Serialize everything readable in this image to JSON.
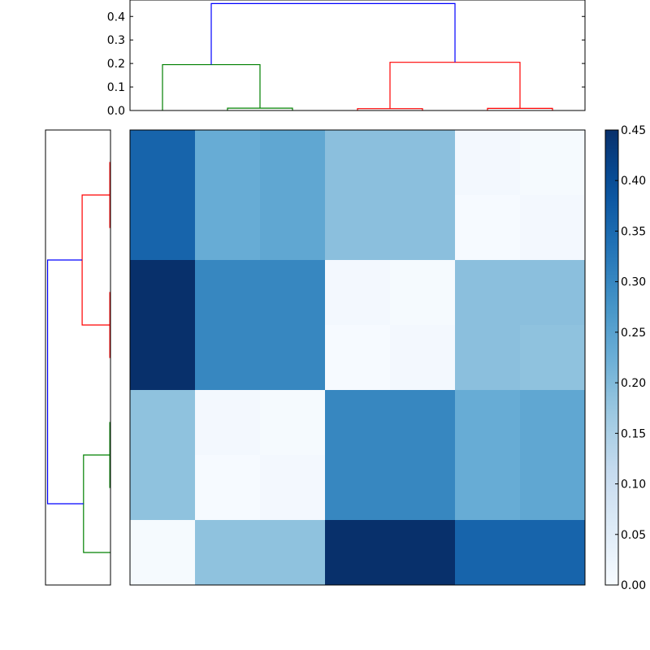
{
  "chart_data": [
    {
      "type": "dendrogram",
      "orientation": "top",
      "ylim": [
        0,
        0.47
      ],
      "y_ticks": [
        "0.0",
        "0.1",
        "0.2",
        "0.3",
        "0.4"
      ],
      "leaves": 7,
      "links": [
        {
          "left_x": 1,
          "right_x": 2,
          "height": 0.01,
          "child_heights": [
            0,
            0
          ],
          "color": "#008000"
        },
        {
          "left_x": 0,
          "right_x": 1.5,
          "height": 0.195,
          "child_heights": [
            0,
            0.01
          ],
          "color": "#008000"
        },
        {
          "left_x": 3,
          "right_x": 4,
          "height": 0.008,
          "child_heights": [
            0,
            0
          ],
          "color": "#ff0000"
        },
        {
          "left_x": 5,
          "right_x": 6,
          "height": 0.009,
          "child_heights": [
            0,
            0
          ],
          "color": "#ff0000"
        },
        {
          "left_x": 3.5,
          "right_x": 5.5,
          "height": 0.205,
          "child_heights": [
            0.008,
            0.009
          ],
          "color": "#ff0000"
        },
        {
          "left_x": 0.75,
          "right_x": 4.5,
          "height": 0.455,
          "child_heights": [
            0.195,
            0.205
          ],
          "color": "#0000ff"
        }
      ]
    },
    {
      "type": "dendrogram",
      "orientation": "left",
      "leaves": 7,
      "xlim": [
        0,
        0.47
      ],
      "links": [
        {
          "left_y": 0,
          "right_y": 1,
          "height": 0.005,
          "child_heights": [
            0,
            0
          ],
          "color": "#ff0000"
        },
        {
          "left_y": 2,
          "right_y": 3,
          "height": 0.005,
          "child_heights": [
            0,
            0
          ],
          "color": "#ff0000"
        },
        {
          "left_y": 0.5,
          "right_y": 2.5,
          "height": 0.205,
          "child_heights": [
            0.005,
            0.005
          ],
          "color": "#ff0000"
        },
        {
          "left_y": 4,
          "right_y": 5,
          "height": 0.005,
          "child_heights": [
            0,
            0
          ],
          "color": "#008000"
        },
        {
          "left_y": 4.5,
          "right_y": 6,
          "height": 0.195,
          "child_heights": [
            0.005,
            0
          ],
          "color": "#008000"
        },
        {
          "left_y": 1.5,
          "right_y": 5.25,
          "height": 0.455,
          "child_heights": [
            0.205,
            0.195
          ],
          "color": "#0000ff"
        }
      ]
    },
    {
      "type": "heatmap",
      "colormap": "Blues",
      "vmin": 0,
      "vmax": 0.45,
      "colorbar_ticks": [
        "0.00",
        "0.05",
        "0.10",
        "0.15",
        "0.20",
        "0.25",
        "0.30",
        "0.35",
        "0.40",
        "0.45"
      ],
      "rows": 7,
      "cols": 7,
      "values": [
        [
          0.36,
          0.23,
          0.24,
          0.19,
          0.19,
          0.01,
          0.005
        ],
        [
          0.36,
          0.23,
          0.24,
          0.19,
          0.19,
          0.002,
          0.01
        ],
        [
          0.45,
          0.3,
          0.3,
          0.01,
          0.005,
          0.19,
          0.19
        ],
        [
          0.45,
          0.3,
          0.3,
          0.002,
          0.01,
          0.19,
          0.185
        ],
        [
          0.185,
          0.01,
          0.005,
          0.3,
          0.3,
          0.23,
          0.24
        ],
        [
          0.185,
          0.002,
          0.01,
          0.3,
          0.3,
          0.23,
          0.24
        ],
        [
          0.005,
          0.185,
          0.185,
          0.45,
          0.45,
          0.36,
          0.36
        ]
      ]
    }
  ]
}
